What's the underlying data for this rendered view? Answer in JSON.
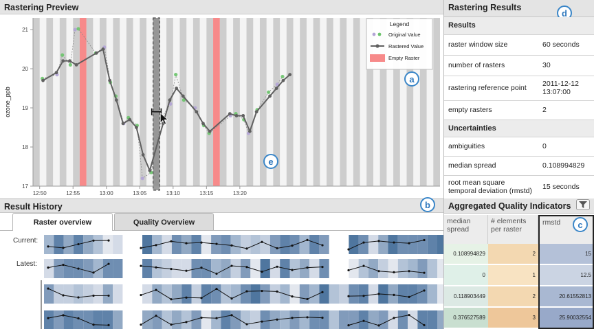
{
  "preview": {
    "title": "Rastering Preview",
    "y_axis_label": "ozone_ppb",
    "legend": {
      "title": "Legend",
      "items": [
        "Original Value",
        "Rastered Value",
        "Empty Raster"
      ]
    }
  },
  "chart_data": {
    "type": "line",
    "ylabel": "ozone_ppb",
    "ylim": [
      17,
      21.3
    ],
    "x_ticks": [
      "12:50",
      "12:55",
      "13:00",
      "13:05",
      "13:10",
      "13:15",
      "13:20"
    ],
    "y_ticks": [
      "17",
      "18",
      "19",
      "20",
      "21"
    ],
    "x_range_minutes": [
      -1,
      60
    ],
    "empty_rasters_minutes": [
      6.5,
      26.5
    ],
    "selected_raster_minutes": 17.5,
    "series": [
      {
        "name": "Rastered Value",
        "x": [
          0.5,
          2.5,
          3.5,
          4.5,
          5.5,
          8.5,
          9.5,
          10.5,
          11.5,
          12.5,
          13.5,
          14.5,
          15.5,
          16.5,
          18.5,
          19.5,
          20.5,
          21.5,
          23.5,
          24.5,
          25.5,
          28.5,
          29.5,
          30.5,
          31.5,
          32.5,
          34.5,
          35.5,
          36.5,
          37.5
        ],
        "y": [
          19.7,
          19.9,
          20.2,
          20.2,
          20.1,
          20.4,
          20.5,
          19.7,
          19.2,
          18.6,
          18.7,
          18.5,
          17.8,
          17.4,
          18.6,
          19.2,
          19.5,
          19.3,
          18.9,
          18.6,
          18.4,
          18.85,
          18.8,
          18.8,
          18.4,
          18.9,
          19.3,
          19.5,
          19.7,
          19.85
        ]
      },
      {
        "name": "Original Value",
        "x": [
          0.4,
          2.6,
          3.4,
          4.6,
          5.3,
          5.8,
          8.4,
          9.7,
          10.6,
          11.4,
          12.6,
          13.3,
          14.6,
          15.4,
          16.7,
          18.3,
          19.6,
          20.4,
          21.6,
          23.3,
          24.6,
          25.4,
          28.6,
          29.4,
          30.6,
          31.3,
          32.6,
          34.3,
          35.6,
          36.4
        ],
        "y": [
          19.75,
          19.85,
          20.35,
          20.1,
          21.0,
          21.02,
          20.4,
          20.55,
          19.65,
          19.3,
          18.6,
          18.75,
          18.55,
          17.2,
          17.35,
          18.75,
          19.1,
          19.85,
          19.2,
          19.0,
          18.55,
          18.35,
          18.8,
          18.85,
          18.7,
          18.35,
          18.95,
          19.4,
          19.6,
          19.8
        ]
      }
    ]
  },
  "results": {
    "title": "Rastering Results",
    "section1": "Results",
    "rows1": [
      {
        "label": "raster window size",
        "value": "60 seconds"
      },
      {
        "label": "number of rasters",
        "value": "30"
      },
      {
        "label": "rastering reference point",
        "value": "2011-12-12 13:07:00"
      },
      {
        "label": "empty rasters",
        "value": "2"
      }
    ],
    "section2": "Uncertainties",
    "rows2": [
      {
        "label": "ambiguities",
        "value": "0"
      },
      {
        "label": "median spread",
        "value": "0.108994829"
      },
      {
        "label": "root mean square temporal deviation (rmstd)",
        "value": "15 seconds"
      }
    ]
  },
  "history": {
    "title": "Result History",
    "tabs": [
      "Raster overview",
      "Quality Overview"
    ],
    "row_labels": [
      "Current:",
      "Latest:"
    ]
  },
  "aqi": {
    "title": "Aggregated Quality Indicators",
    "headers": [
      "median spread",
      "# elements per raster",
      "rmstd"
    ],
    "rows": [
      {
        "spread": "0.108994829",
        "elements": "2",
        "rmstd": "15"
      },
      {
        "spread": "0",
        "elements": "1",
        "rmstd": "12.5"
      },
      {
        "spread": "0.118903449",
        "elements": "2",
        "rmstd": "20.61552813"
      },
      {
        "spread": "0.376527589",
        "elements": "3",
        "rmstd": "25.90032554"
      }
    ]
  },
  "callouts": [
    "a",
    "b",
    "c",
    "d",
    "e"
  ],
  "colors": {
    "empty_raster": "#f78a8a",
    "rastered_line": "#606060",
    "original_green": "#6cc46c",
    "original_purple": "#b3a4d6",
    "accent_blue": "#3a86c8"
  }
}
